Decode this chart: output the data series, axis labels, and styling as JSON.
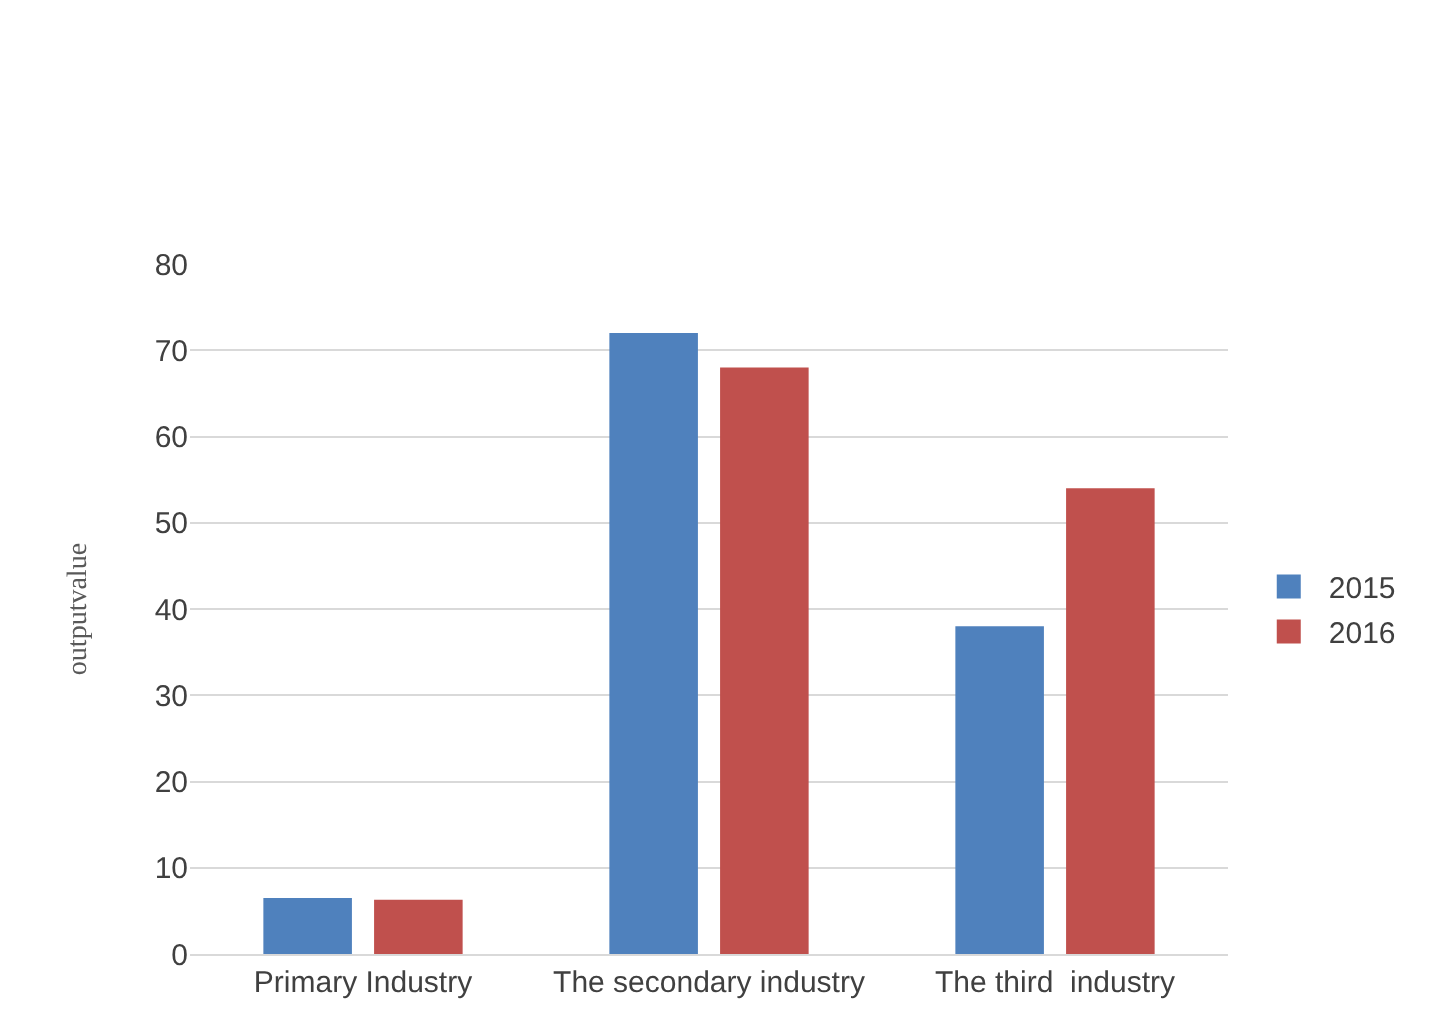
{
  "chart_data": {
    "type": "bar",
    "ylabel": "outputvalue",
    "categories": [
      "Primary Industry",
      "The secondary industry",
      "The third  industry"
    ],
    "series": [
      {
        "name": "2015",
        "color": "#4f81bd",
        "values": [
          6.5,
          72,
          38
        ]
      },
      {
        "name": "2016",
        "color": "#c0504d",
        "values": [
          6.3,
          68,
          54
        ]
      }
    ],
    "ylim": [
      0,
      80
    ],
    "yticks": [
      0,
      10,
      20,
      30,
      40,
      50,
      60,
      70,
      80
    ],
    "grid": "y",
    "legend": "right"
  }
}
